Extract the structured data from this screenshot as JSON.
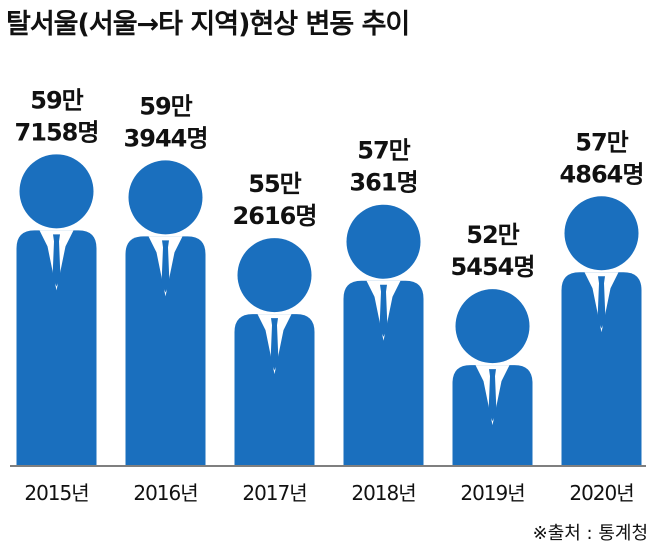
{
  "title": "탈서울(서울→타 지역)현상 변동 추이",
  "source": "※출처 : 통계청",
  "colors": {
    "figure": "#1a6fbe",
    "text": "#111111",
    "shirt": "#ffffff",
    "baseline": "#555555"
  },
  "chart_data": {
    "type": "bar",
    "title": "탈서울(서울→타 지역)현상 변동 추이",
    "categories": [
      "2015년",
      "2016년",
      "2017년",
      "2018년",
      "2019년",
      "2020년"
    ],
    "values": [
      597158,
      593944,
      552616,
      570361,
      525454,
      574864
    ],
    "value_labels": [
      [
        "59만",
        "7158명"
      ],
      [
        "59만",
        "3944명"
      ],
      [
        "55만",
        "2616명"
      ],
      [
        "57만",
        "361명"
      ],
      [
        "52만",
        "5454명"
      ],
      [
        "57만",
        "4864명"
      ]
    ],
    "xlabel": "",
    "ylabel": "",
    "ylim": [
      500000,
      600000
    ],
    "grid": false,
    "legend": "none"
  }
}
